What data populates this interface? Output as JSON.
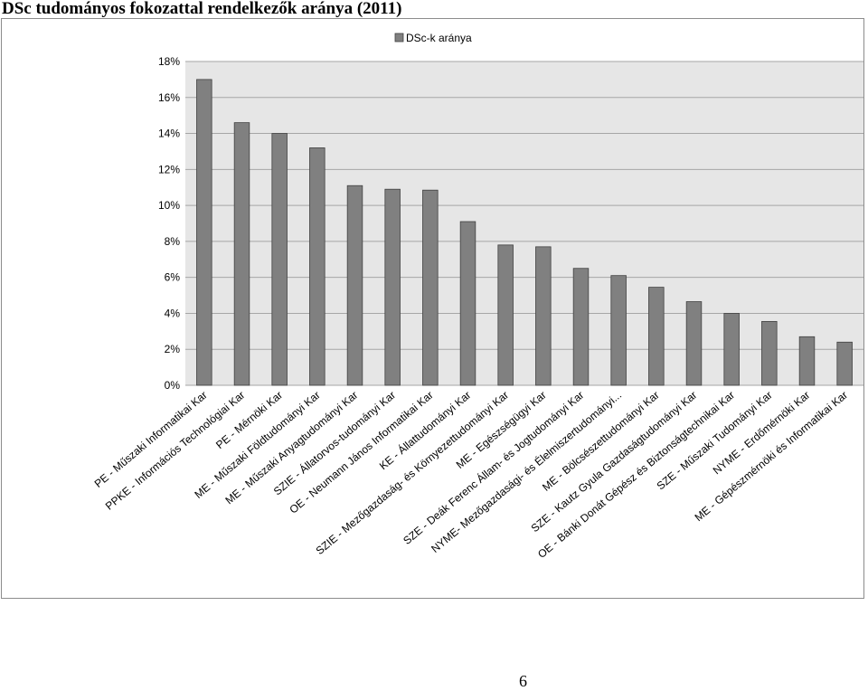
{
  "page": {
    "title": "DSc tudományos fokozattal rendelkezők aránya (2011)",
    "page_number": "6"
  },
  "colors": {
    "bar": "#808080",
    "bar_stroke": "#404040",
    "plot_bg": "#e6e6e6",
    "grid": "#a6a6a6"
  },
  "chart_data": {
    "type": "bar",
    "title": "DSc tudományos fokozattal rendelkezők aránya (2011)",
    "xlabel": "",
    "ylabel": "",
    "ylim": [
      0,
      18
    ],
    "yticks": [
      0,
      2,
      4,
      6,
      8,
      10,
      12,
      14,
      16,
      18
    ],
    "ytick_labels": [
      "0%",
      "2%",
      "4%",
      "6%",
      "8%",
      "10%",
      "12%",
      "14%",
      "16%",
      "18%"
    ],
    "grid": true,
    "legend": {
      "position": "top-center",
      "entries": [
        "DSc-k aránya"
      ]
    },
    "categories": [
      "PE - Műszaki Informatikai Kar",
      "PPKE - Információs Technológiai Kar",
      "PE - Mérnöki Kar",
      "ME - Műszaki Földtudományi Kar",
      "ME - Műszaki Anyagtudományi Kar",
      "SZIE - Állatorvos-tudományi Kar",
      "OE - Neumann János Informatikai Kar",
      "KE - Állattudományi Kar",
      "SZIE - Mezőgazdaság- és Környezettudományi Kar",
      "ME - Egészségügyi Kar",
      "SZE - Deák Ferenc Állam- és Jogtudományi Kar",
      "NYME- Mezőgazdasági- és Élelmiszertudományi...",
      "ME - Bölcsészettudományi Kar",
      "SZE - Kautz Gyula Gazdaságtudományi Kar",
      "OE - Bánki Donát Gépész és Biztonságtechnikai Kar",
      "SZE - Műszaki Tudományi Kar",
      "NYME - Erdőmérnöki Kar",
      "ME - Gépészmérnöki és Informatikai Kar"
    ],
    "series": [
      {
        "name": "DSc-k aránya",
        "values": [
          17.0,
          14.6,
          14.0,
          13.2,
          11.1,
          10.9,
          10.85,
          9.1,
          7.8,
          7.7,
          6.5,
          6.1,
          5.45,
          4.65,
          4.0,
          3.55,
          2.7,
          2.4
        ]
      }
    ]
  }
}
